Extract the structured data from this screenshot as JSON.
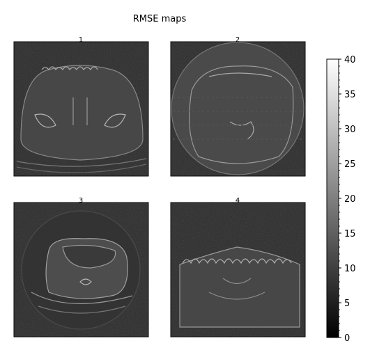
{
  "chart_data": {
    "type": "heatmap",
    "title": "RMSE maps",
    "panels": [
      {
        "label": "1",
        "shape": "ellipse-body"
      },
      {
        "label": "2",
        "shape": "circle-fov"
      },
      {
        "label": "3",
        "shape": "abdomen"
      },
      {
        "label": "4",
        "shape": "flat-top"
      }
    ],
    "colorbar": {
      "colormap": "gray",
      "vmin": 0,
      "vmax": 40,
      "ticks": [
        "0",
        "5",
        "10",
        "15",
        "20",
        "25",
        "30",
        "35",
        "40"
      ],
      "tick_values": [
        0,
        5,
        10,
        15,
        20,
        25,
        30,
        35,
        40
      ]
    },
    "background_rmse": 4,
    "structure_rmse": 15
  }
}
